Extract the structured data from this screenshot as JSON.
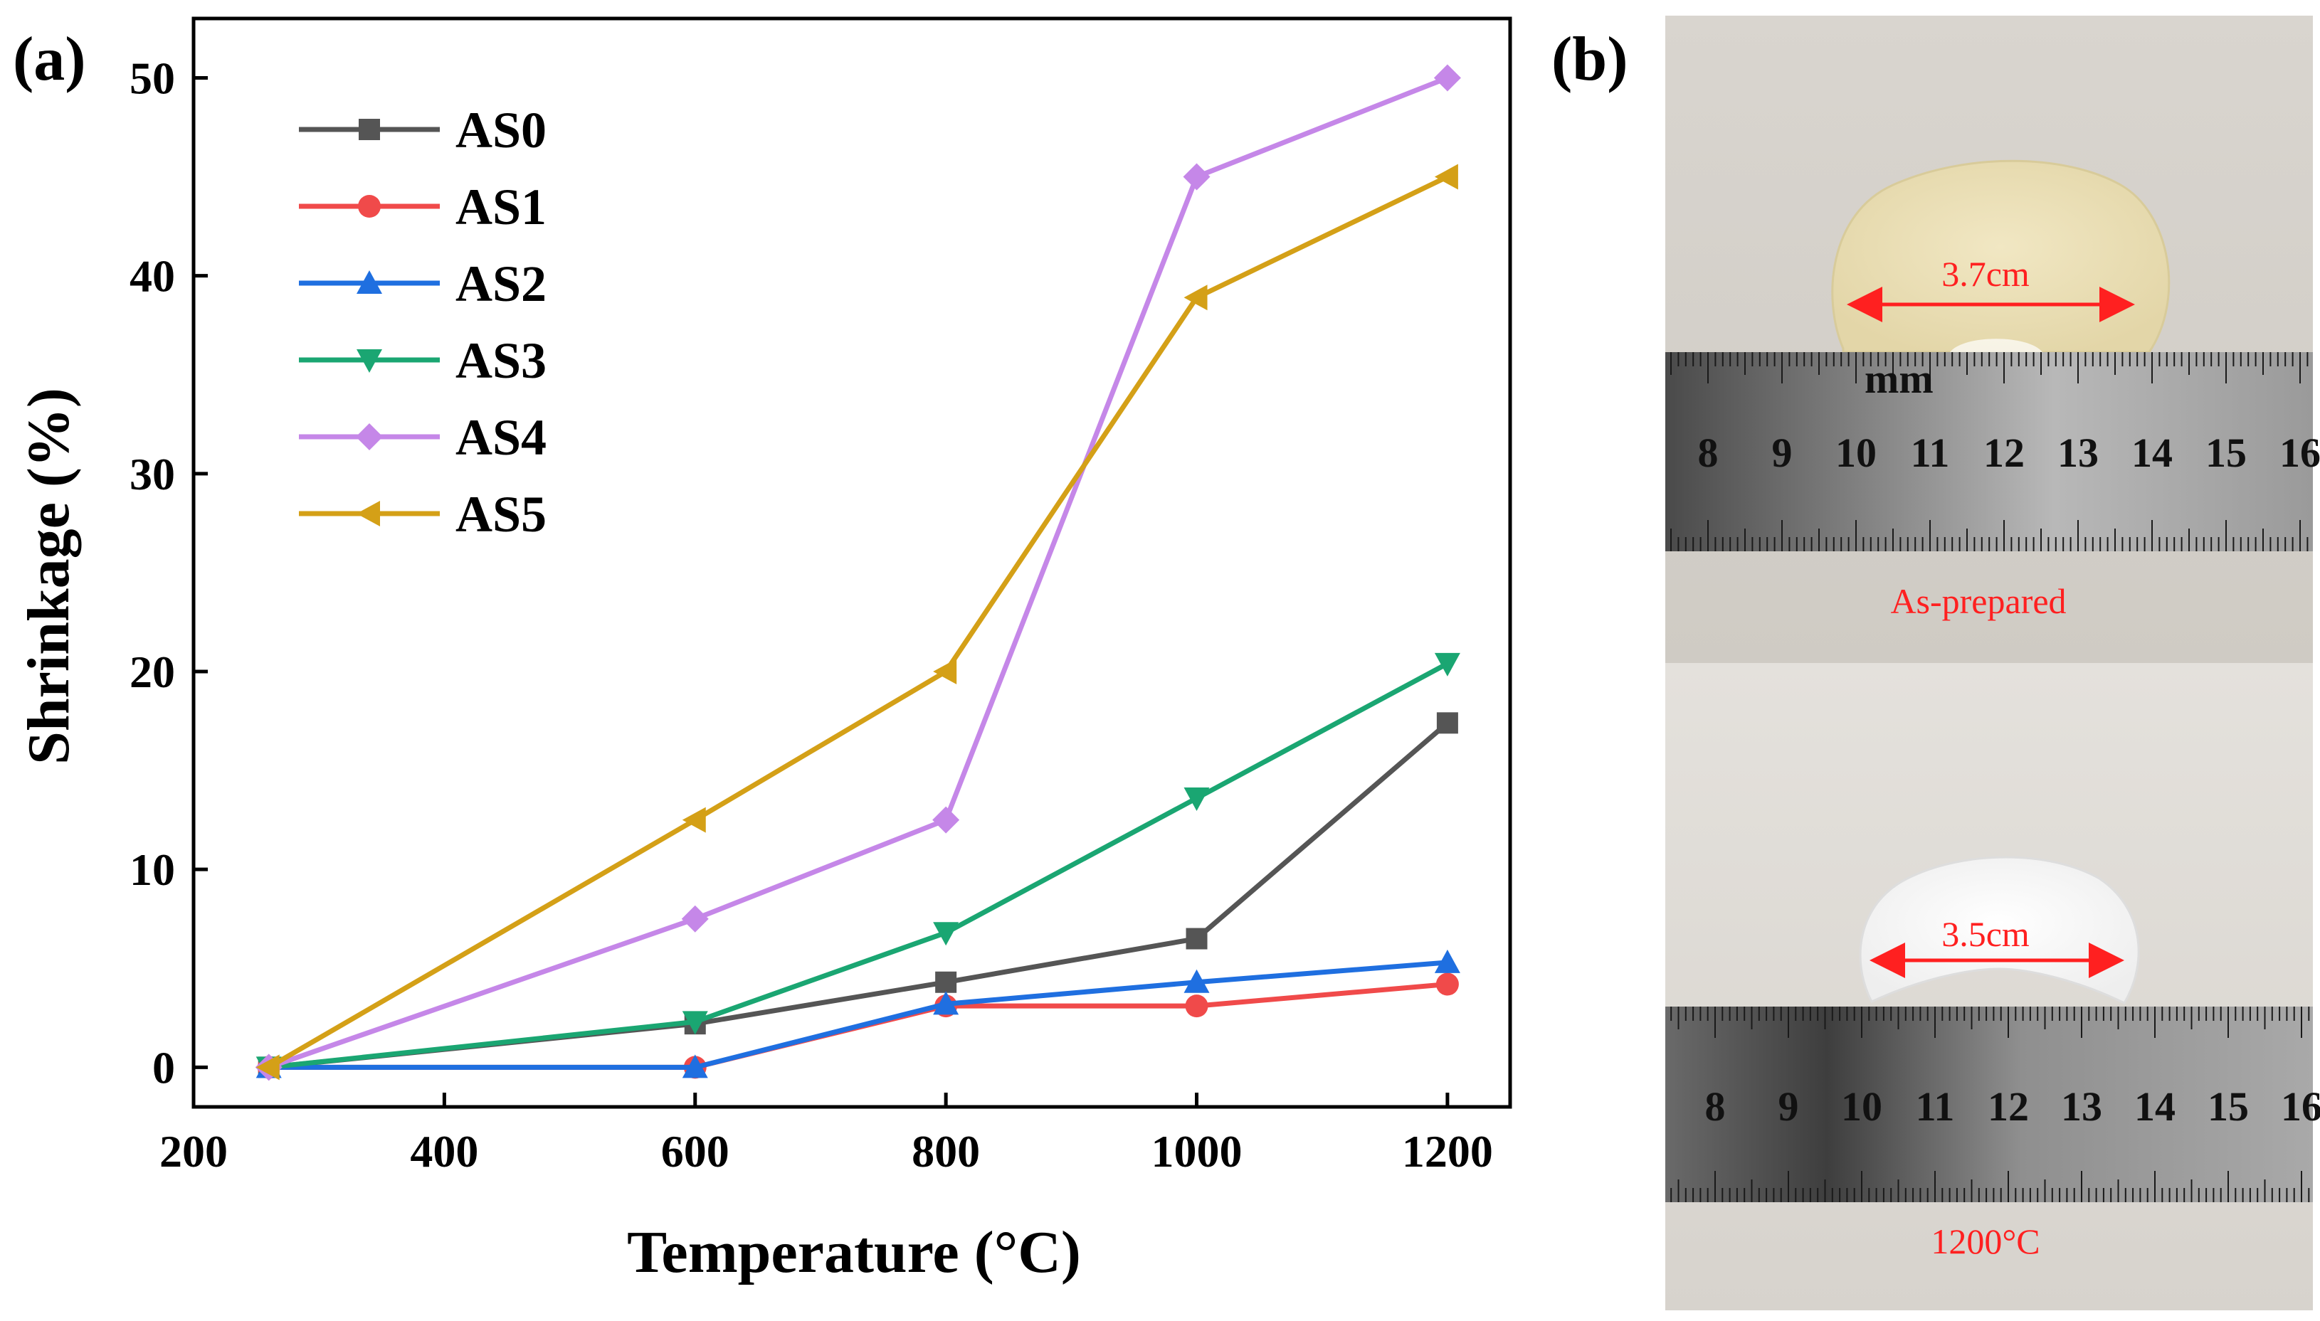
{
  "panel_a_label": "(a)",
  "panel_b_label": "(b)",
  "chart_data": {
    "type": "line",
    "title": "",
    "xlabel": "Temperature (°C)",
    "ylabel": "Shrinkage (%)",
    "xlim": [
      200,
      1250
    ],
    "ylim": [
      -2,
      53
    ],
    "x_ticks": [
      200,
      400,
      600,
      800,
      1000,
      1200
    ],
    "y_ticks": [
      0,
      10,
      20,
      30,
      40,
      50
    ],
    "grid": false,
    "legend_position": "top-left",
    "series": [
      {
        "name": "AS0",
        "color": "#555555",
        "marker": "square",
        "x": [
          260,
          600,
          800,
          1000,
          1200
        ],
        "values": [
          0,
          2.2,
          4.3,
          6.5,
          17.4
        ]
      },
      {
        "name": "AS1",
        "color": "#f04a4a",
        "marker": "circle",
        "x": [
          260,
          600,
          800,
          1000,
          1200
        ],
        "values": [
          0,
          0,
          3.1,
          3.1,
          4.2
        ]
      },
      {
        "name": "AS2",
        "color": "#1f6fe0",
        "marker": "triangle-up",
        "x": [
          260,
          600,
          800,
          1000,
          1200
        ],
        "values": [
          0,
          0,
          3.2,
          4.3,
          5.3
        ]
      },
      {
        "name": "AS3",
        "color": "#1aa672",
        "marker": "triangle-down",
        "x": [
          260,
          600,
          800,
          1000,
          1200
        ],
        "values": [
          0,
          2.3,
          6.8,
          13.6,
          20.4
        ]
      },
      {
        "name": "AS4",
        "color": "#c587e8",
        "marker": "diamond",
        "x": [
          260,
          600,
          800,
          1000,
          1200
        ],
        "values": [
          0,
          7.5,
          12.5,
          45.0,
          50.0
        ]
      },
      {
        "name": "AS5",
        "color": "#d4a017",
        "marker": "triangle-left",
        "x": [
          260,
          600,
          800,
          1000,
          1200
        ],
        "values": [
          0,
          12.5,
          20.0,
          38.9,
          45.0
        ]
      }
    ]
  },
  "photos": {
    "top": {
      "measurement": "3.7cm",
      "caption": "As-prepared"
    },
    "bottom": {
      "measurement": "3.5cm",
      "caption": "1200°C"
    },
    "ruler_numbers": [
      "8",
      "9",
      "10",
      "11",
      "12",
      "13",
      "14",
      "15",
      "16"
    ],
    "ruler_unit": "mm",
    "annotation_color": "#ff2020"
  }
}
